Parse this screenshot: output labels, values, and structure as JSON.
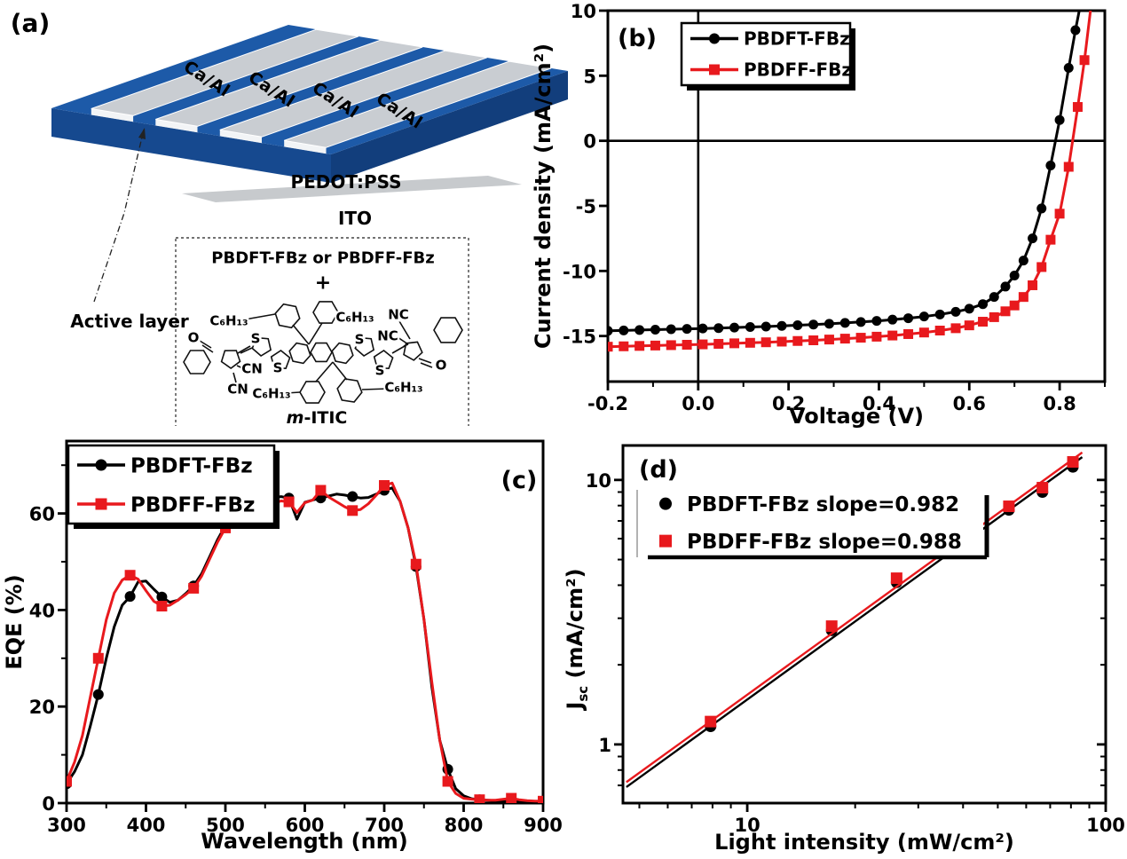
{
  "figure": {
    "panel_labels": {
      "a": "(a)",
      "b": "(b)",
      "c": "(c)",
      "d": "(d)"
    },
    "background": "#ffffff"
  },
  "colors": {
    "black_series": "#000000",
    "red_series": "#e8191d",
    "device_blue_top": "#1d5aa8",
    "device_blue_front": "#16498f",
    "device_blue_side": "#123e7c",
    "electrode_gray": "#c9cdd2",
    "electrode_edge": "#f2f4f6",
    "ito_gray": "#c7cacd"
  },
  "panel_a": {
    "label": "(a)",
    "electrodes": [
      "Ca/Al",
      "Ca/Al",
      "Ca/Al",
      "Ca/Al"
    ],
    "pedot_label": "PEDOT:PSS",
    "ito_label": "ITO",
    "active_layer_label": "Active layer",
    "molecule": {
      "title": "PBDFT-FBz or PBDFF-FBz",
      "plus": "+",
      "name_italic": "m",
      "name_rest": "-ITIC",
      "atoms": {
        "o_left": "O",
        "o_right": "O",
        "s_top_left": "S",
        "s_bottom_left": "S",
        "s_top_right": "S",
        "s_bottom_right": "S",
        "cn_upper": "CN",
        "cn_lower": "CN",
        "nc_upper": "NC",
        "nc_lower": "NC",
        "hexyl_top_left": "C₆H₁₃",
        "hexyl_top_right": "C₆H₁₃",
        "hexyl_bottom_left": "C₆H₁₃",
        "hexyl_bottom_right": "C₆H₁₃"
      }
    }
  },
  "chart_data": [
    {
      "panel": "b",
      "type": "line",
      "xlabel": "Voltage (V)",
      "ylabel": "Current density (mA/cm²)",
      "xlim": [
        -0.2,
        0.9
      ],
      "ylim": [
        -18.5,
        10
      ],
      "xticks": [
        -0.2,
        0,
        0.2,
        0.4,
        0.6,
        0.8
      ],
      "xtick_labels": [
        "-0.2",
        "0.0",
        "0.2",
        "0.4",
        "0.6",
        "0.8"
      ],
      "yticks": [
        10,
        5,
        0,
        -5,
        -10,
        -15
      ],
      "ytick_labels": [
        "10",
        "5",
        "0",
        "-5",
        "-10",
        "-15"
      ],
      "zero_lines": true,
      "legend_position": "top-left",
      "legend": [
        {
          "label": "PBDFT-FBz",
          "color": "#000000",
          "marker": "circle"
        },
        {
          "label": "PBDFF-FBz",
          "color": "#e8191d",
          "marker": "square"
        }
      ],
      "series": [
        {
          "name": "PBDFT-FBz",
          "color": "#000000",
          "marker": "circle",
          "points": [
            [
              -0.2,
              -14.6
            ],
            [
              -0.165,
              -14.57
            ],
            [
              -0.13,
              -14.54
            ],
            [
              -0.095,
              -14.51
            ],
            [
              -0.06,
              -14.48
            ],
            [
              -0.025,
              -14.45
            ],
            [
              0.01,
              -14.42
            ],
            [
              0.045,
              -14.39
            ],
            [
              0.08,
              -14.35
            ],
            [
              0.115,
              -14.31
            ],
            [
              0.15,
              -14.27
            ],
            [
              0.185,
              -14.22
            ],
            [
              0.22,
              -14.17
            ],
            [
              0.255,
              -14.12
            ],
            [
              0.29,
              -14.06
            ],
            [
              0.325,
              -13.99
            ],
            [
              0.36,
              -13.92
            ],
            [
              0.395,
              -13.84
            ],
            [
              0.43,
              -13.74
            ],
            [
              0.465,
              -13.63
            ],
            [
              0.5,
              -13.5
            ],
            [
              0.535,
              -13.34
            ],
            [
              0.57,
              -13.14
            ],
            [
              0.6,
              -12.9
            ],
            [
              0.63,
              -12.55
            ],
            [
              0.655,
              -12.0
            ],
            [
              0.68,
              -11.2
            ],
            [
              0.7,
              -10.35
            ],
            [
              0.72,
              -9.2
            ],
            [
              0.74,
              -7.5
            ],
            [
              0.76,
              -5.2
            ],
            [
              0.78,
              -1.9
            ],
            [
              0.8,
              1.6
            ],
            [
              0.82,
              5.6
            ],
            [
              0.835,
              8.5
            ],
            [
              0.848,
              10.8
            ]
          ]
        },
        {
          "name": "PBDFF-FBz",
          "color": "#e8191d",
          "marker": "square",
          "points": [
            [
              -0.2,
              -15.82
            ],
            [
              -0.165,
              -15.79
            ],
            [
              -0.13,
              -15.76
            ],
            [
              -0.095,
              -15.73
            ],
            [
              -0.06,
              -15.7
            ],
            [
              -0.025,
              -15.67
            ],
            [
              0.01,
              -15.64
            ],
            [
              0.045,
              -15.6
            ],
            [
              0.08,
              -15.56
            ],
            [
              0.115,
              -15.52
            ],
            [
              0.15,
              -15.48
            ],
            [
              0.185,
              -15.43
            ],
            [
              0.22,
              -15.38
            ],
            [
              0.255,
              -15.33
            ],
            [
              0.29,
              -15.27
            ],
            [
              0.325,
              -15.2
            ],
            [
              0.36,
              -15.13
            ],
            [
              0.395,
              -15.05
            ],
            [
              0.43,
              -14.96
            ],
            [
              0.465,
              -14.85
            ],
            [
              0.5,
              -14.73
            ],
            [
              0.535,
              -14.58
            ],
            [
              0.57,
              -14.4
            ],
            [
              0.6,
              -14.18
            ],
            [
              0.63,
              -13.9
            ],
            [
              0.655,
              -13.55
            ],
            [
              0.68,
              -13.1
            ],
            [
              0.7,
              -12.65
            ],
            [
              0.72,
              -12.0
            ],
            [
              0.74,
              -11.1
            ],
            [
              0.76,
              -9.7
            ],
            [
              0.78,
              -7.6
            ],
            [
              0.8,
              -5.6
            ],
            [
              0.82,
              -2.0
            ],
            [
              0.84,
              2.6
            ],
            [
              0.855,
              6.2
            ],
            [
              0.87,
              10.5
            ]
          ]
        }
      ]
    },
    {
      "panel": "c",
      "type": "line",
      "xlabel": "Wavelength (nm)",
      "ylabel": "EQE (%)",
      "xlim": [
        300,
        900
      ],
      "ylim": [
        0,
        75
      ],
      "xticks": [
        300,
        400,
        500,
        600,
        700,
        800,
        900
      ],
      "xtick_labels": [
        "300",
        "400",
        "500",
        "600",
        "700",
        "800",
        "900"
      ],
      "yticks": [
        0,
        20,
        40,
        60
      ],
      "ytick_labels": [
        "0",
        "20",
        "40",
        "60"
      ],
      "legend_position": "top-left",
      "legend": [
        {
          "label": "PBDFT-FBz",
          "color": "#000000",
          "marker": "circle"
        },
        {
          "label": "PBDFF-FBz",
          "color": "#e8191d",
          "marker": "square"
        }
      ],
      "series": [
        {
          "name": "PBDFT-FBz",
          "color": "#000000",
          "marker": "circle",
          "marker_every": 4,
          "x_start": 300,
          "x_step": 10,
          "values": [
            4,
            6.5,
            10,
            16,
            22.5,
            30,
            36.5,
            41,
            42.8,
            45.8,
            46,
            44.3,
            42.7,
            41.6,
            42,
            43.4,
            45,
            47.5,
            51,
            54.5,
            57.5,
            59.5,
            61,
            61.8,
            62.3,
            62.8,
            63.2,
            63.5,
            63.2,
            58.8,
            62.3,
            62.8,
            63.2,
            63.6,
            64,
            63.8,
            63.5,
            63.2,
            63.3,
            64,
            64.8,
            65.3,
            62.5,
            57,
            49,
            38,
            24,
            13,
            7,
            3,
            1.5,
            0.9,
            0.7,
            0.6,
            0.5,
            0.5,
            0.6,
            0.5,
            0.4,
            0.3,
            0.3
          ]
        },
        {
          "name": "PBDFF-FBz",
          "color": "#e8191d",
          "marker": "square",
          "marker_every": 4,
          "x_start": 300,
          "x_step": 10,
          "values": [
            4.5,
            8.5,
            14,
            22,
            30,
            38,
            43.5,
            46.2,
            47.2,
            46.4,
            44,
            41.8,
            40.8,
            41,
            42,
            43.2,
            44.5,
            47,
            50.5,
            54,
            57,
            58.8,
            60.2,
            61,
            61.8,
            62.4,
            62,
            62.6,
            62.4,
            60.2,
            62.2,
            62.8,
            64.8,
            63.4,
            62.4,
            61.4,
            60.6,
            60.8,
            62,
            63.8,
            65.8,
            66.3,
            62.5,
            57,
            49.5,
            38,
            25,
            13,
            4.5,
            2,
            1,
            0.8,
            0.7,
            0.6,
            0.6,
            0.8,
            1.0,
            0.7,
            0.5,
            0.4,
            0.4
          ]
        }
      ]
    },
    {
      "panel": "d",
      "type": "scatter",
      "xscale": "log",
      "yscale": "log",
      "xlabel": "Light intensity (mW/cm²)",
      "ylabel_parts": {
        "main": "J",
        "sub": "sc",
        "rest": " (mA/cm²)"
      },
      "xlim": [
        4.5,
        100
      ],
      "ylim": [
        0.6,
        13.5
      ],
      "xticks": [
        10,
        100
      ],
      "xtick_labels": [
        "10",
        "100"
      ],
      "yticks": [
        1,
        10
      ],
      "ytick_labels": [
        "1",
        "10"
      ],
      "legend_position": "top-left",
      "legend": [
        {
          "label": "PBDFT-FBz slope=0.982",
          "color": "#000000",
          "marker": "circle"
        },
        {
          "label": "PBDFF-FBz slope=0.988",
          "color": "#e8191d",
          "marker": "square"
        }
      ],
      "series": [
        {
          "name": "PBDFT-FBz",
          "slope": 0.982,
          "color": "#000000",
          "marker": "circle",
          "points": [
            [
              7.9,
              1.17
            ],
            [
              17.2,
              2.7
            ],
            [
              26.1,
              4.1
            ],
            [
              41,
              6.1
            ],
            [
              53.7,
              7.7
            ],
            [
              66.6,
              9.0
            ],
            [
              81,
              11.2
            ]
          ],
          "fit_line": [
            [
              4.6,
              0.69
            ],
            [
              86,
              12.2
            ]
          ]
        },
        {
          "name": "PBDFF-FBz",
          "slope": 0.988,
          "color": "#e8191d",
          "marker": "square",
          "points": [
            [
              7.9,
              1.22
            ],
            [
              17.2,
              2.8
            ],
            [
              26.1,
              4.25
            ],
            [
              41,
              6.3
            ],
            [
              53.7,
              7.95
            ],
            [
              66.6,
              9.35
            ],
            [
              81,
              11.7
            ]
          ],
          "fit_line": [
            [
              4.6,
              0.72
            ],
            [
              86,
              12.7
            ]
          ]
        }
      ]
    }
  ]
}
